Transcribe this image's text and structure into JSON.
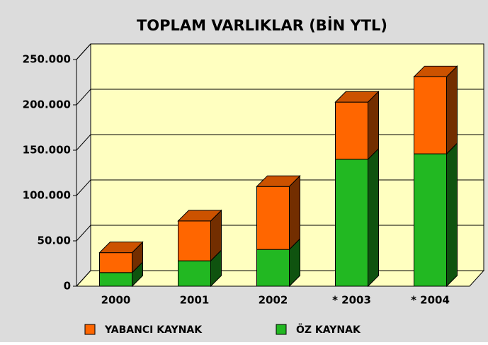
{
  "chart_data": {
    "type": "bar3d_stacked",
    "title": "TOPLAM  VARLIKLAR  (BİN YTL)",
    "categories": [
      "2000",
      "2001",
      "2002",
      "* 2003",
      "* 2004"
    ],
    "series": [
      {
        "name": "ÖZ KAYNAK",
        "color": "#22b822",
        "values": [
          15000,
          28000,
          40500,
          140000,
          146000
        ]
      },
      {
        "name": "YABANCI KAYNAK",
        "color": "#ff6600",
        "values": [
          22000,
          44000,
          69500,
          63000,
          85000
        ]
      }
    ],
    "ylim": [
      0,
      250000
    ],
    "yticks": [
      0,
      {
        "value": 50000,
        "label": "50.00"
      },
      {
        "value": 100000,
        "label": "100.000"
      },
      {
        "value": 150000,
        "label": "150.000"
      },
      {
        "value": 200000,
        "label": "200.000"
      },
      {
        "value": 250000,
        "label": "250.000"
      }
    ],
    "grid": true
  }
}
